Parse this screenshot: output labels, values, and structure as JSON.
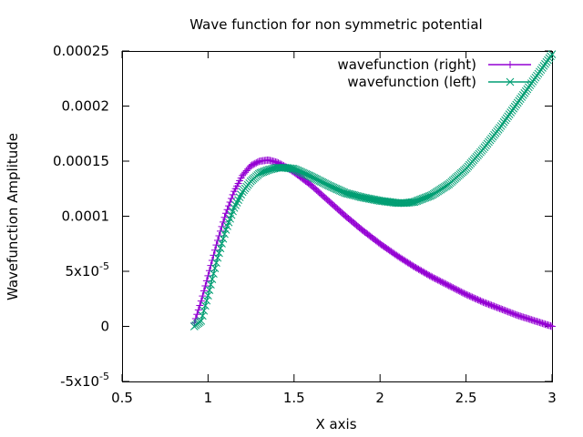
{
  "chart_data": {
    "type": "line",
    "title": "Wave function for non symmetric potential",
    "xlabel": "X axis",
    "ylabel": "Wavefunction Amplitude",
    "xlim": [
      0.5,
      3
    ],
    "ylim": [
      -5e-05,
      0.00025
    ],
    "grid": false,
    "legend_position": "top-right",
    "x_ticks": [
      {
        "value": 0.5,
        "label": "0.5"
      },
      {
        "value": 1,
        "label": "1"
      },
      {
        "value": 1.5,
        "label": "1.5"
      },
      {
        "value": 2,
        "label": "2"
      },
      {
        "value": 2.5,
        "label": "2.5"
      },
      {
        "value": 3,
        "label": "3"
      }
    ],
    "y_ticks": [
      {
        "value": -5e-05,
        "mantissa": "-5x10",
        "exponent": "-5"
      },
      {
        "value": 0,
        "mantissa": "0",
        "exponent": ""
      },
      {
        "value": 5e-05,
        "mantissa": "5x10",
        "exponent": "-5"
      },
      {
        "value": 0.0001,
        "mantissa": "0.0001",
        "exponent": ""
      },
      {
        "value": 0.00015,
        "mantissa": "0.00015",
        "exponent": ""
      },
      {
        "value": 0.0002,
        "mantissa": "0.0002",
        "exponent": ""
      },
      {
        "value": 0.00025,
        "mantissa": "0.00025",
        "exponent": ""
      }
    ],
    "series": [
      {
        "name": "wavefunction (right)",
        "color": "#9400d3",
        "marker": "plus",
        "x": [
          0.92,
          0.96,
          1.0,
          1.05,
          1.1,
          1.15,
          1.2,
          1.25,
          1.3,
          1.35,
          1.4,
          1.45,
          1.5,
          1.6,
          1.7,
          1.8,
          1.9,
          2.0,
          2.1,
          2.2,
          2.3,
          2.4,
          2.5,
          2.6,
          2.7,
          2.8,
          2.9,
          3.0
        ],
        "y": [
          3e-06,
          2.3e-05,
          4.6e-05,
          7.5e-05,
          0.000101,
          0.000122,
          0.000137,
          0.000146,
          0.00015,
          0.000151,
          0.000149,
          0.000145,
          0.00014,
          0.000128,
          0.000114,
          0.0001,
          8.7e-05,
          7.5e-05,
          6.4e-05,
          5.4e-05,
          4.5e-05,
          3.7e-05,
          2.9e-05,
          2.2e-05,
          1.6e-05,
          1e-05,
          5e-06,
          0.0
        ]
      },
      {
        "name": "wavefunction (left)",
        "color": "#009e73",
        "marker": "cross",
        "x": [
          0.92,
          0.96,
          1.0,
          1.05,
          1.1,
          1.15,
          1.2,
          1.25,
          1.3,
          1.35,
          1.4,
          1.45,
          1.5,
          1.6,
          1.7,
          1.8,
          1.9,
          2.0,
          2.1,
          2.15,
          2.2,
          2.3,
          2.4,
          2.5,
          2.6,
          2.7,
          2.8,
          2.9,
          3.0
        ],
        "y": [
          0.0,
          5e-06,
          2.8e-05,
          5.9e-05,
          8.6e-05,
          0.000107,
          0.000122,
          0.000132,
          0.000139,
          0.000142,
          0.000144,
          0.000144,
          0.000143,
          0.000136,
          0.000128,
          0.000121,
          0.000117,
          0.000114,
          0.000112,
          0.000112,
          0.000113,
          0.000119,
          0.000129,
          0.000143,
          0.000161,
          0.000181,
          0.000203,
          0.000225,
          0.000247
        ]
      }
    ]
  }
}
